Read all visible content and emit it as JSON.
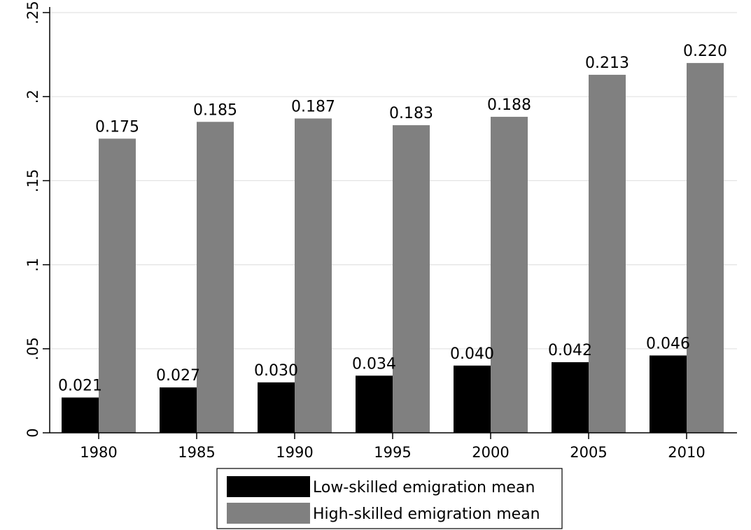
{
  "chart_data": {
    "type": "bar",
    "categories": [
      "1980",
      "1985",
      "1990",
      "1995",
      "2000",
      "2005",
      "2010"
    ],
    "series": [
      {
        "name": "Low-skilled emigration mean",
        "color": "#000000",
        "values": [
          0.021,
          0.027,
          0.03,
          0.034,
          0.04,
          0.042,
          0.046
        ],
        "labels": [
          "0.021",
          "0.027",
          "0.030",
          "0.034",
          "0.040",
          "0.042",
          "0.046"
        ]
      },
      {
        "name": "High-skilled emigration mean",
        "color": "#808080",
        "values": [
          0.175,
          0.185,
          0.187,
          0.183,
          0.188,
          0.213,
          0.22
        ],
        "labels": [
          "0.175",
          "0.185",
          "0.187",
          "0.183",
          "0.188",
          "0.213",
          "0.220"
        ]
      }
    ],
    "y_ticks": [
      {
        "value": 0,
        "label": "0"
      },
      {
        "value": 0.05,
        "label": ".05"
      },
      {
        "value": 0.1,
        "label": ".1"
      },
      {
        "value": 0.15,
        "label": ".15"
      },
      {
        "value": 0.2,
        "label": ".2"
      },
      {
        "value": 0.25,
        "label": ".25"
      }
    ],
    "ylim": [
      0,
      0.25
    ],
    "grid": true,
    "legend_position": "bottom"
  }
}
